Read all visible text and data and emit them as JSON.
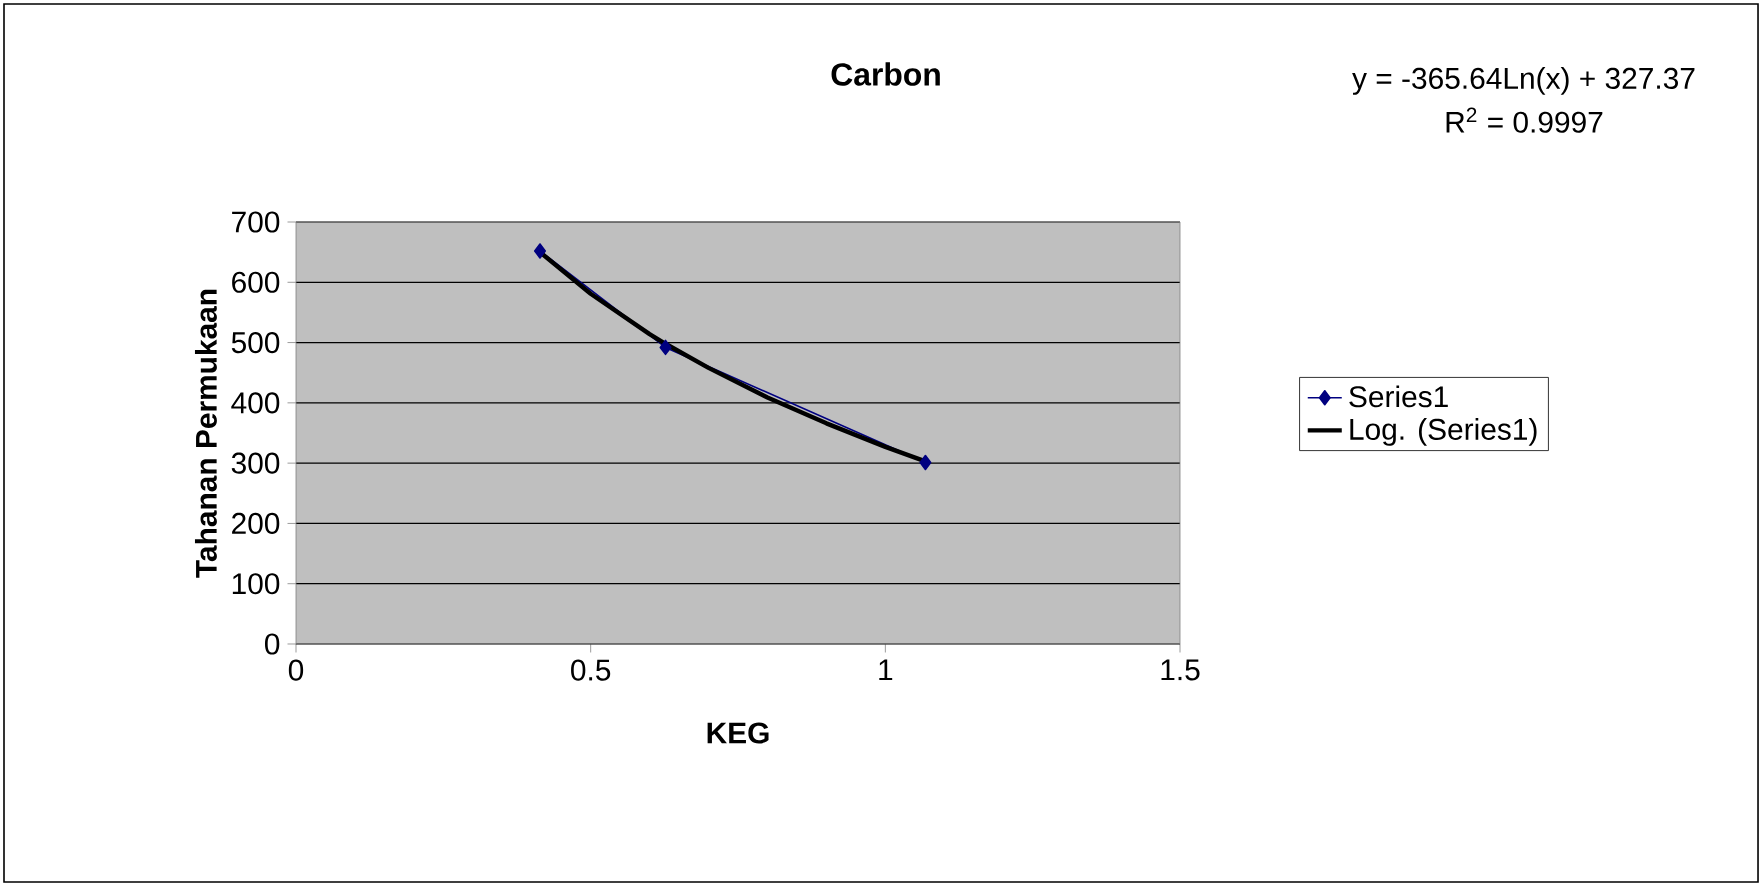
{
  "chart_data": {
    "type": "line",
    "title": "Carbon",
    "xlabel": "KEG",
    "ylabel": "Tahanan Permukaan",
    "series": [
      {
        "name": "Series1",
        "color": "#000080",
        "marker": "diamond",
        "x": [
          0.414,
          0.627,
          1.068
        ],
        "values": [
          652,
          492,
          301
        ]
      },
      {
        "name": "Log. (Series1)",
        "color": "#000000",
        "marker": "none",
        "x": [
          0.414,
          0.5,
          0.6,
          0.627,
          0.7,
          0.8,
          0.9,
          1.0,
          1.068
        ],
        "values": [
          650,
          581,
          514,
          498,
          458,
          409,
          366,
          327,
          303
        ]
      }
    ],
    "xlim": [
      0,
      1.5
    ],
    "xticks": [
      0,
      0.5,
      1,
      1.5
    ],
    "ylim": [
      0,
      700
    ],
    "yticks": [
      0,
      100,
      200,
      300,
      400,
      500,
      600,
      700
    ],
    "grid": "y",
    "legend": "right",
    "annotations": [
      "y = -365.64Ln(x) + 327.37",
      "R$^{2}$ = 0.9997"
    ]
  }
}
